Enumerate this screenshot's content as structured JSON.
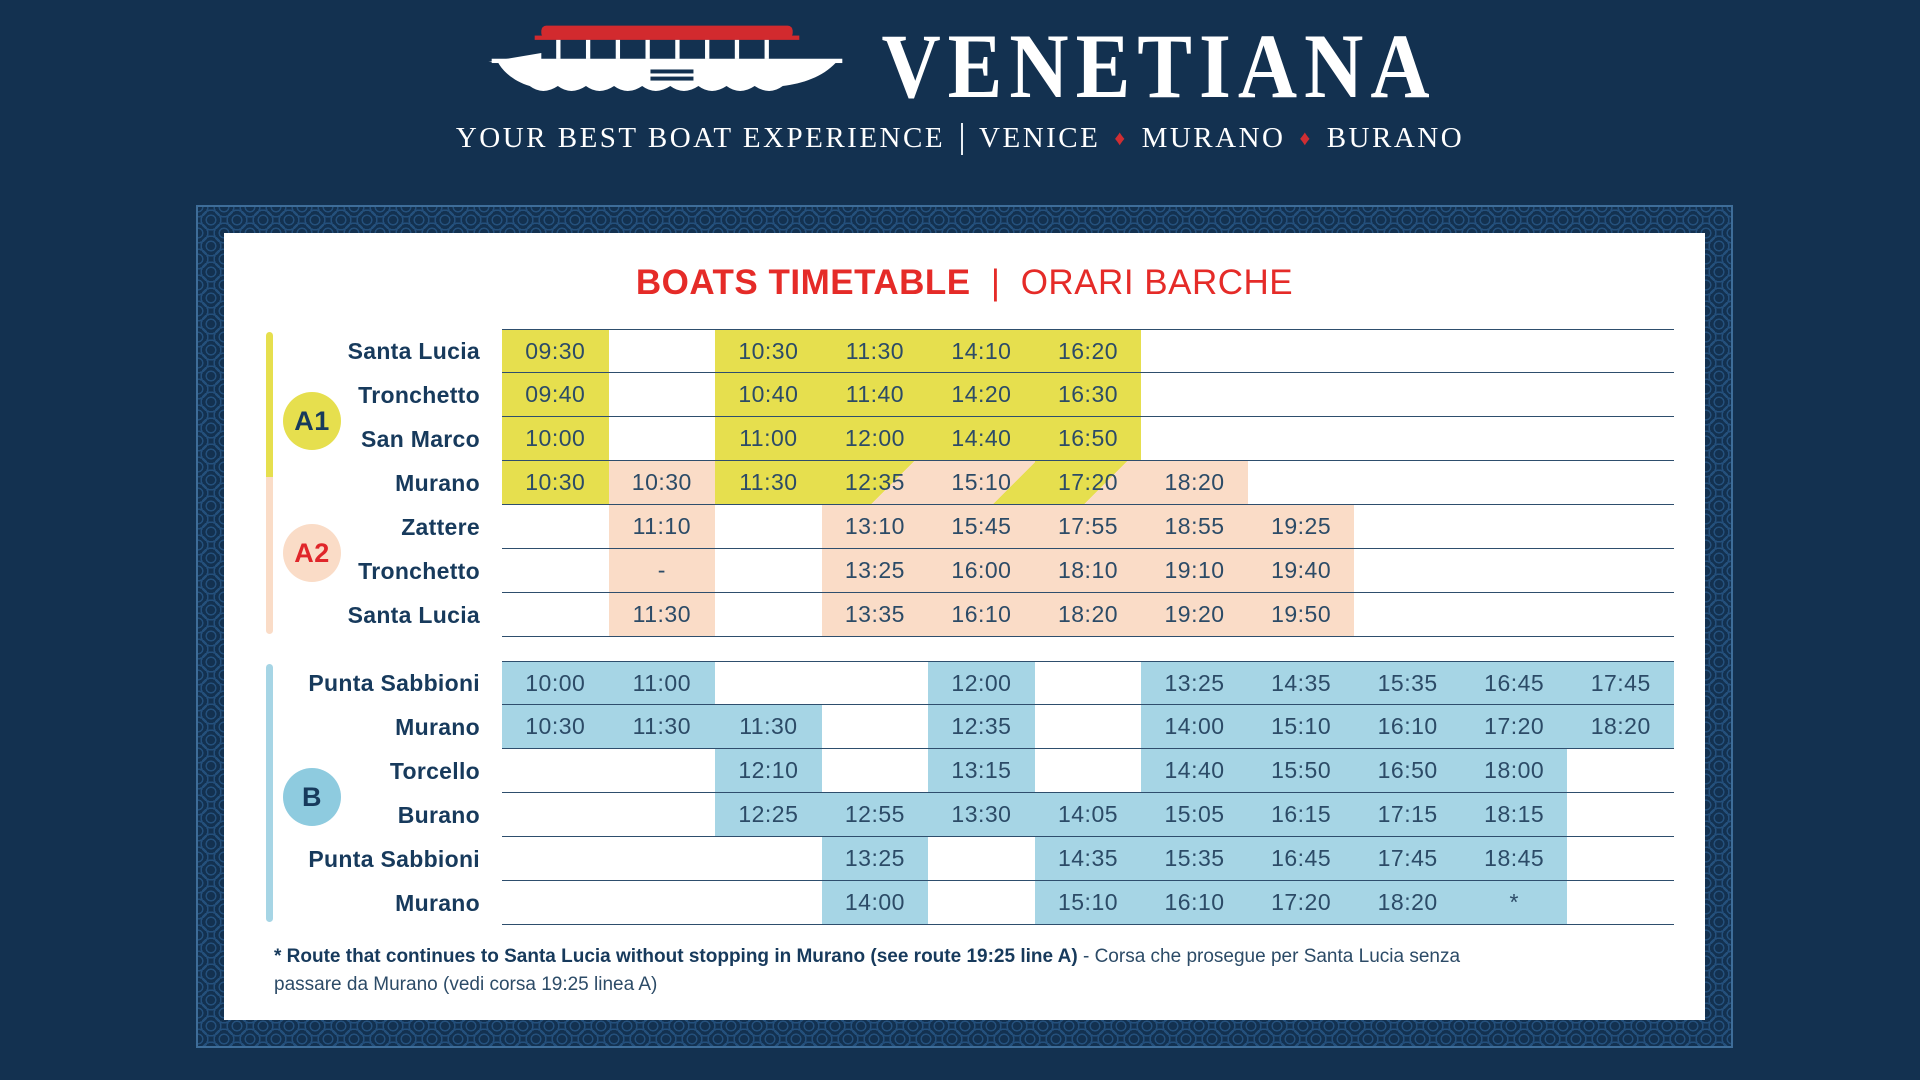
{
  "header": {
    "brand": "VENETIANA",
    "tagline": "YOUR BEST BOAT EXPERIENCE",
    "destinations": [
      "VENICE",
      "MURANO",
      "BURANO"
    ],
    "diamond": "♦"
  },
  "timetable": {
    "title_en": "BOATS TIMETABLE",
    "title_divider": "|",
    "title_it": "ORARI BARCHE"
  },
  "colors": {
    "background_navy": "#133150",
    "accent_red": "#e52b28",
    "route_a1_yellow": "#e6df4e",
    "route_a2_peach": "#fadcc7",
    "route_b_blue": "#a6d5e5",
    "text_navy": "#173a5c"
  },
  "tables": [
    {
      "id": "A",
      "rail": "a",
      "badges": [
        {
          "label": "A1",
          "style": "yellow",
          "pos": "a1"
        },
        {
          "label": "A2",
          "style": "peach",
          "pos": "a2"
        }
      ],
      "rows": [
        {
          "stop": "Santa Lucia",
          "cells": [
            [
              "09:30",
              "y"
            ],
            [
              "",
              ""
            ],
            [
              "10:30",
              "y"
            ],
            [
              "11:30",
              "y"
            ],
            [
              "14:10",
              "y"
            ],
            [
              "16:20",
              "y"
            ],
            [
              "",
              ""
            ],
            [
              "",
              ""
            ],
            [
              "",
              ""
            ],
            [
              "",
              ""
            ],
            [
              "",
              ""
            ]
          ]
        },
        {
          "stop": "Tronchetto",
          "cells": [
            [
              "09:40",
              "y"
            ],
            [
              "",
              ""
            ],
            [
              "10:40",
              "y"
            ],
            [
              "11:40",
              "y"
            ],
            [
              "14:20",
              "y"
            ],
            [
              "16:30",
              "y"
            ],
            [
              "",
              ""
            ],
            [
              "",
              ""
            ],
            [
              "",
              ""
            ],
            [
              "",
              ""
            ],
            [
              "",
              ""
            ]
          ]
        },
        {
          "stop": "San Marco",
          "cells": [
            [
              "10:00",
              "y"
            ],
            [
              "",
              ""
            ],
            [
              "11:00",
              "y"
            ],
            [
              "12:00",
              "y"
            ],
            [
              "14:40",
              "y"
            ],
            [
              "16:50",
              "y"
            ],
            [
              "",
              ""
            ],
            [
              "",
              ""
            ],
            [
              "",
              ""
            ],
            [
              "",
              ""
            ],
            [
              "",
              ""
            ]
          ]
        },
        {
          "stop": "Murano",
          "cells": [
            [
              "10:30",
              "y"
            ],
            [
              "10:30",
              "p"
            ],
            [
              "11:30",
              "y"
            ],
            [
              "12:35",
              "yp"
            ],
            [
              "15:10",
              "py"
            ],
            [
              "17:20",
              "yp"
            ],
            [
              "18:20",
              "p"
            ],
            [
              "",
              ""
            ],
            [
              "",
              ""
            ],
            [
              "",
              ""
            ],
            [
              "",
              ""
            ]
          ]
        },
        {
          "stop": "Zattere",
          "cells": [
            [
              "",
              ""
            ],
            [
              "11:10",
              "p"
            ],
            [
              "",
              ""
            ],
            [
              "13:10",
              "p"
            ],
            [
              "15:45",
              "p"
            ],
            [
              "17:55",
              "p"
            ],
            [
              "18:55",
              "p"
            ],
            [
              "19:25",
              "p"
            ],
            [
              "",
              ""
            ],
            [
              "",
              ""
            ],
            [
              "",
              ""
            ]
          ]
        },
        {
          "stop": "Tronchetto",
          "cells": [
            [
              "",
              ""
            ],
            [
              "-",
              "p"
            ],
            [
              "",
              ""
            ],
            [
              "13:25",
              "p"
            ],
            [
              "16:00",
              "p"
            ],
            [
              "18:10",
              "p"
            ],
            [
              "19:10",
              "p"
            ],
            [
              "19:40",
              "p"
            ],
            [
              "",
              ""
            ],
            [
              "",
              ""
            ],
            [
              "",
              ""
            ]
          ]
        },
        {
          "stop": "Santa Lucia",
          "cells": [
            [
              "",
              ""
            ],
            [
              "11:30",
              "p"
            ],
            [
              "",
              ""
            ],
            [
              "13:35",
              "p"
            ],
            [
              "16:10",
              "p"
            ],
            [
              "18:20",
              "p"
            ],
            [
              "19:20",
              "p"
            ],
            [
              "19:50",
              "p"
            ],
            [
              "",
              ""
            ],
            [
              "",
              ""
            ],
            [
              "",
              ""
            ]
          ]
        }
      ]
    },
    {
      "id": "B",
      "rail": "b",
      "badges": [
        {
          "label": "B",
          "style": "blue",
          "pos": "b"
        }
      ],
      "rows": [
        {
          "stop": "Punta Sabbioni",
          "cells": [
            [
              "10:00",
              "b"
            ],
            [
              "11:00",
              "b"
            ],
            [
              "",
              ""
            ],
            [
              "",
              ""
            ],
            [
              "12:00",
              "b"
            ],
            [
              "",
              ""
            ],
            [
              "13:25",
              "b"
            ],
            [
              "14:35",
              "b"
            ],
            [
              "15:35",
              "b"
            ],
            [
              "16:45",
              "b"
            ],
            [
              "17:45",
              "b"
            ]
          ]
        },
        {
          "stop": "Murano",
          "cells": [
            [
              "10:30",
              "b"
            ],
            [
              "11:30",
              "b"
            ],
            [
              "11:30",
              "b"
            ],
            [
              "",
              ""
            ],
            [
              "12:35",
              "b"
            ],
            [
              "",
              ""
            ],
            [
              "14:00",
              "b"
            ],
            [
              "15:10",
              "b"
            ],
            [
              "16:10",
              "b"
            ],
            [
              "17:20",
              "b"
            ],
            [
              "18:20",
              "b"
            ]
          ]
        },
        {
          "stop": "Torcello",
          "cells": [
            [
              "",
              ""
            ],
            [
              "",
              ""
            ],
            [
              "12:10",
              "b"
            ],
            [
              "",
              ""
            ],
            [
              "13:15",
              "b"
            ],
            [
              "",
              ""
            ],
            [
              "14:40",
              "b"
            ],
            [
              "15:50",
              "b"
            ],
            [
              "16:50",
              "b"
            ],
            [
              "18:00",
              "b"
            ],
            [
              "",
              ""
            ]
          ]
        },
        {
          "stop": "Burano",
          "cells": [
            [
              "",
              ""
            ],
            [
              "",
              ""
            ],
            [
              "12:25",
              "b"
            ],
            [
              "12:55",
              "b"
            ],
            [
              "13:30",
              "b"
            ],
            [
              "14:05",
              "b"
            ],
            [
              "15:05",
              "b"
            ],
            [
              "16:15",
              "b"
            ],
            [
              "17:15",
              "b"
            ],
            [
              "18:15",
              "b"
            ],
            [
              "",
              ""
            ]
          ]
        },
        {
          "stop": "Punta Sabbioni",
          "cells": [
            [
              "",
              ""
            ],
            [
              "",
              ""
            ],
            [
              "",
              ""
            ],
            [
              "13:25",
              "b"
            ],
            [
              "",
              ""
            ],
            [
              "14:35",
              "b"
            ],
            [
              "15:35",
              "b"
            ],
            [
              "16:45",
              "b"
            ],
            [
              "17:45",
              "b"
            ],
            [
              "18:45",
              "b"
            ],
            [
              "",
              ""
            ]
          ]
        },
        {
          "stop": "Murano",
          "cells": [
            [
              "",
              ""
            ],
            [
              "",
              ""
            ],
            [
              "",
              ""
            ],
            [
              "14:00",
              "b"
            ],
            [
              "",
              ""
            ],
            [
              "15:10",
              "b"
            ],
            [
              "16:10",
              "b"
            ],
            [
              "17:20",
              "b"
            ],
            [
              "18:20",
              "b"
            ],
            [
              "*",
              "b"
            ],
            [
              "",
              ""
            ]
          ]
        }
      ]
    }
  ],
  "footnote": {
    "bold": "* Route that continues to Santa Lucia without stopping in Murano (see route 19:25 line A)",
    "regular": "- Corsa che prosegue per Santa Lucia senza passare da Murano (vedi corsa 19:25 linea A)"
  }
}
